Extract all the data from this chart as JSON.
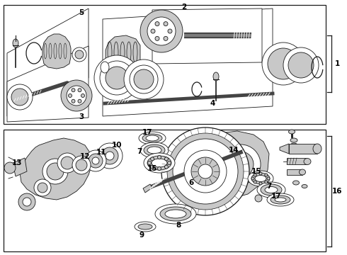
{
  "line_color": "#1a1a1a",
  "light_gray": "#c8c8c8",
  "mid_gray": "#999999",
  "dark_gray": "#444444",
  "white": "#ffffff",
  "lw_thin": 0.6,
  "lw_med": 0.9,
  "lw_thick": 1.4,
  "fig_w": 4.9,
  "fig_h": 3.6,
  "dpi": 100
}
